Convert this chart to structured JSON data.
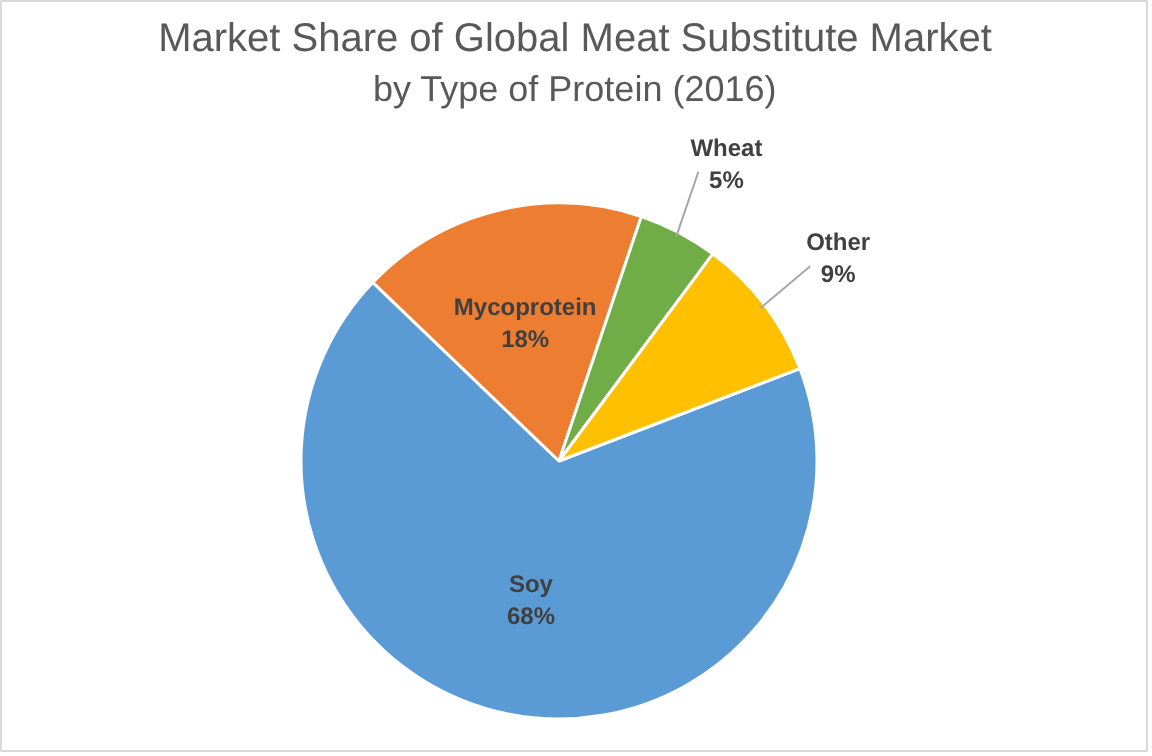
{
  "chart_data": {
    "type": "pie",
    "title": "Market Share of Global Meat Substitute Market",
    "subtitle": "by Type of Protein (2016)",
    "categories": [
      "Soy",
      "Mycoprotein",
      "Wheat",
      "Other"
    ],
    "values": [
      68,
      18,
      5,
      9
    ],
    "colors": [
      "#5b9bd5",
      "#ed7d31",
      "#70ad47",
      "#ffc000"
    ],
    "value_labels": [
      "68%",
      "18%",
      "5%",
      "9%"
    ]
  }
}
